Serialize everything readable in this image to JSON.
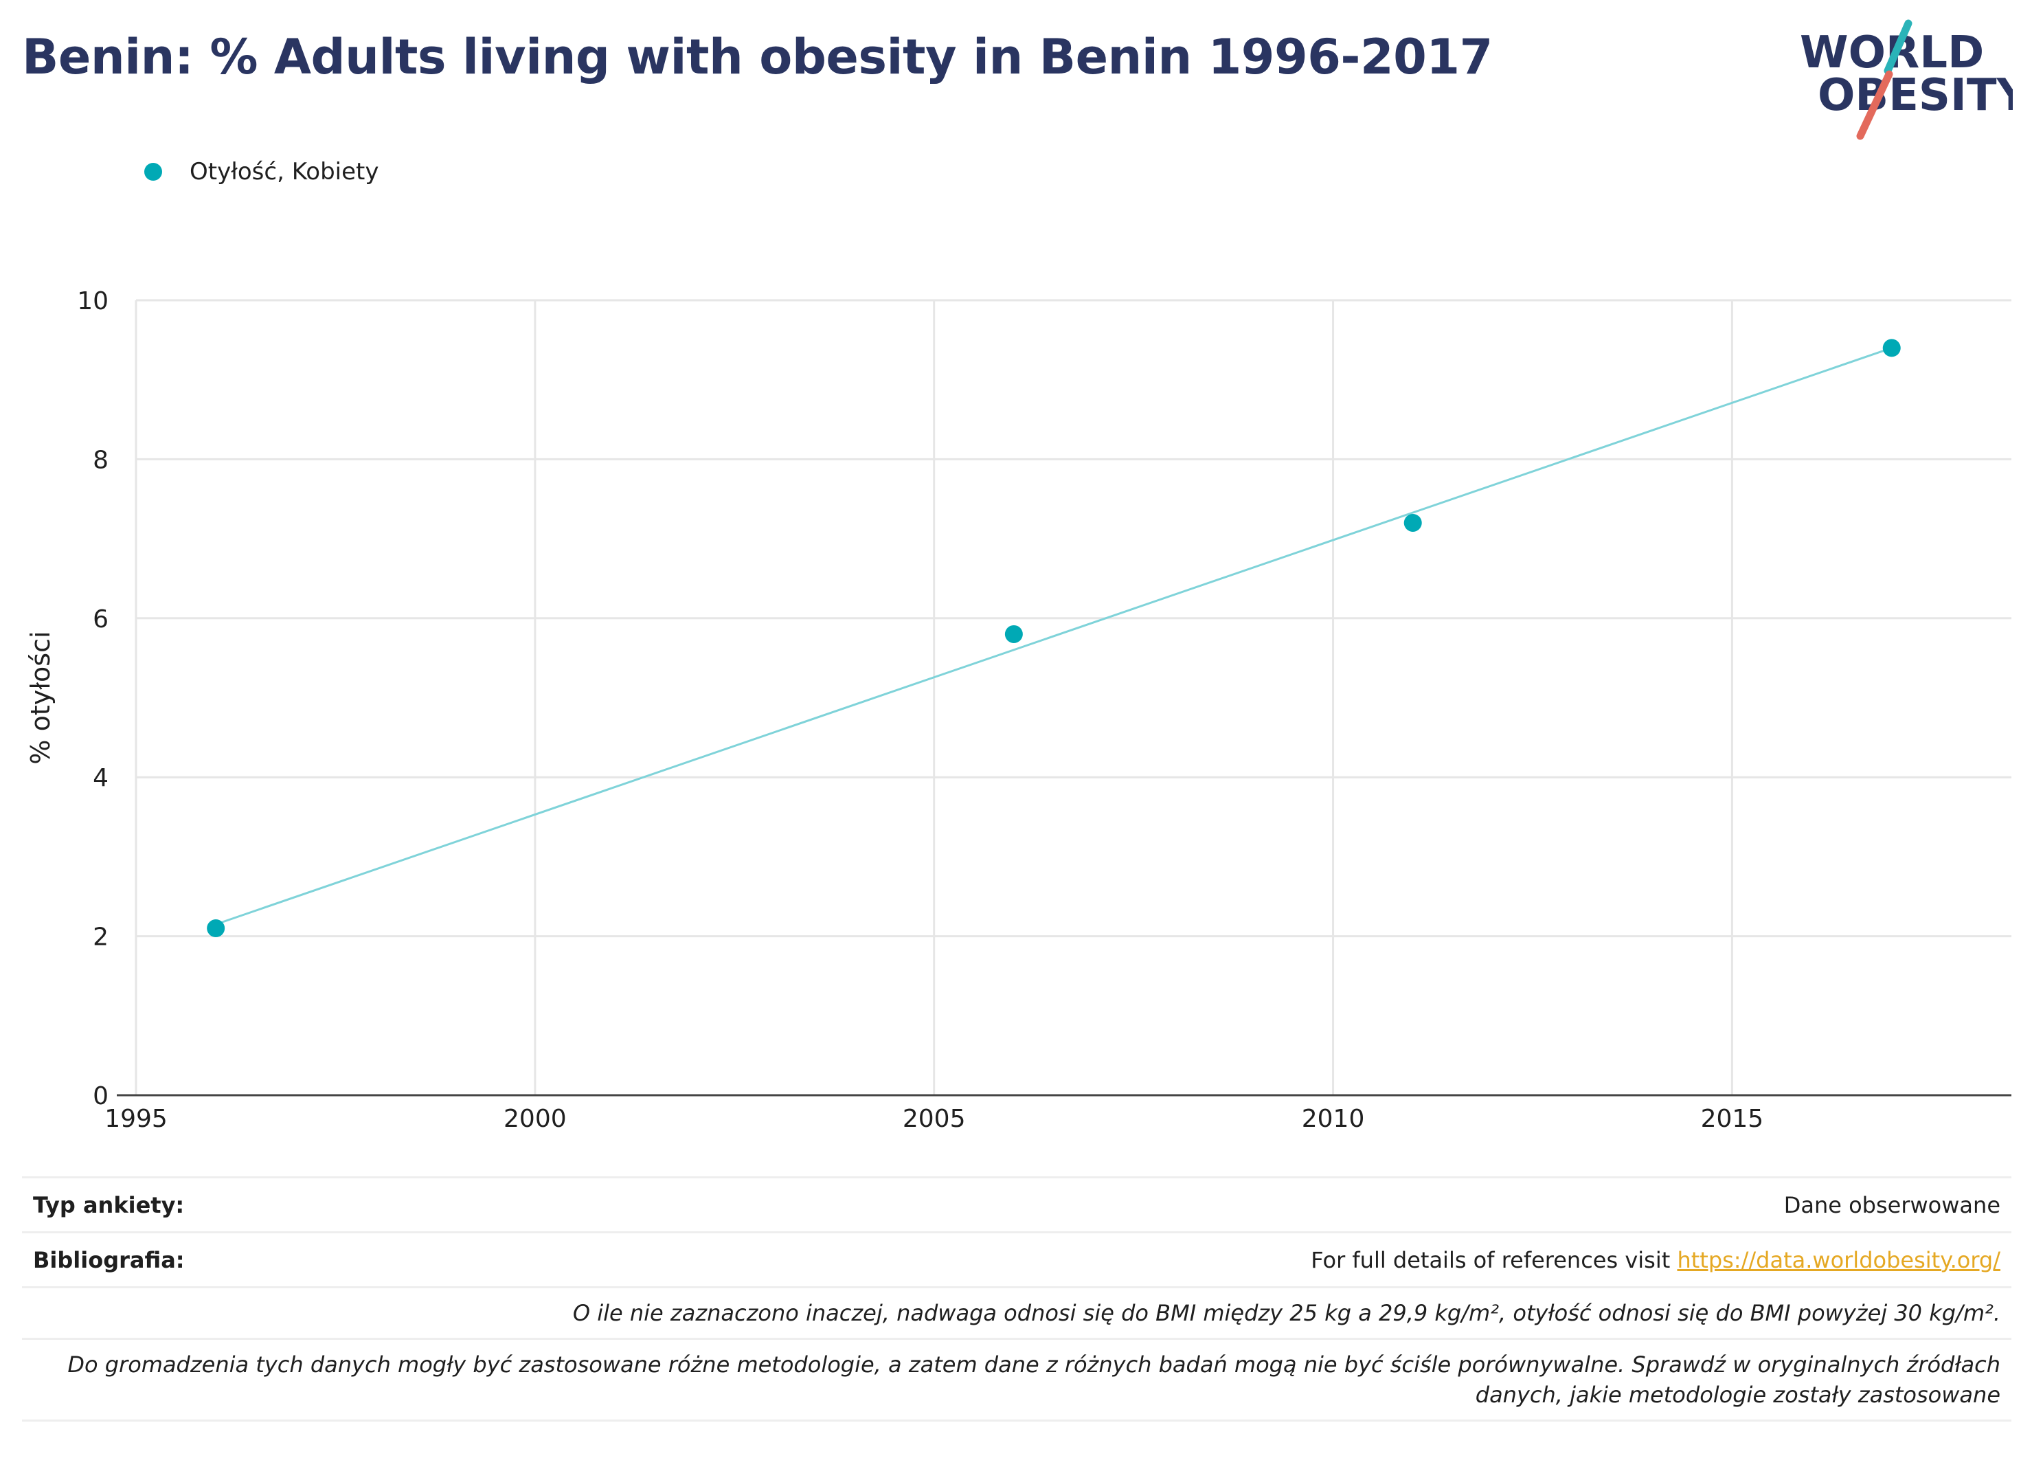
{
  "title": "Benin: % Adults living with obesity in Benin 1996-2017",
  "logo": {
    "line1": "WORLD",
    "line2": "OBESITY"
  },
  "colors": {
    "title": "#2a3561",
    "series": "#00a9b5",
    "trendline": "#7fd3d9",
    "grid": "#e6e6e6",
    "axis": "#444444",
    "logo_navy": "#2a3561",
    "logo_teal": "#2ab3b8",
    "logo_coral": "#e36a5c",
    "link": "#e5a823"
  },
  "chart_data": {
    "type": "scatter",
    "ylabel": "% otyłości",
    "xlabel": "",
    "xlim": [
      1995,
      2018.5
    ],
    "ylim": [
      0,
      10
    ],
    "x_ticks": [
      1995,
      2000,
      2005,
      2010,
      2015
    ],
    "y_ticks": [
      0,
      2,
      4,
      6,
      8,
      10
    ],
    "grid": true,
    "legend_position": "top-left",
    "series": [
      {
        "name": "Otyłość, Kobiety",
        "color": "#00a9b5",
        "x": [
          1996,
          2006,
          2011,
          2017
        ],
        "y": [
          2.1,
          5.8,
          7.2,
          9.4
        ]
      }
    ],
    "trendline": {
      "x": [
        1996,
        2017
      ],
      "y": [
        2.15,
        9.4
      ]
    }
  },
  "info": {
    "survey_type_label": "Typ ankiety:",
    "survey_type_value": "Dane obserwowane",
    "bibliography_label": "Bibliografia:",
    "bibliography_text": "For full details of references visit ",
    "bibliography_link": "https://data.worldobesity.org/",
    "note1": "O ile nie zaznaczono inaczej, nadwaga odnosi się do BMI między 25 kg a 29,9 kg/m², otyłość odnosi się do BMI powyżej 30 kg/m².",
    "note2": "Do gromadzenia tych danych mogły być zastosowane różne metodologie, a zatem dane z różnych badań mogą nie być ściśle porównywalne. Sprawdź w oryginalnych źródłach danych, jakie metodologie zostały zastosowane"
  }
}
